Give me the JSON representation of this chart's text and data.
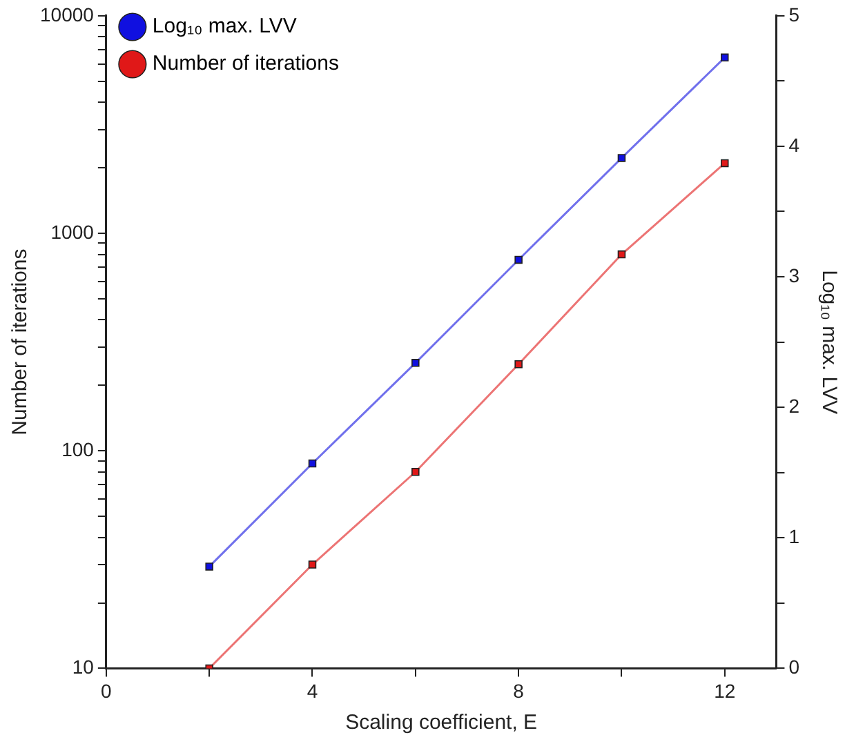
{
  "chart_data": {
    "type": "line",
    "xlabel": "Scaling coefficient, E",
    "ylabel": "Number of iterations",
    "y2label": "Log₁₀ max. LVV",
    "x": [
      2,
      4,
      6,
      8,
      10,
      12
    ],
    "series": [
      {
        "name": "Log₁₀ max. LVV",
        "color": "#1010e0",
        "axis": "y2",
        "values": [
          0.78,
          1.57,
          2.34,
          3.13,
          3.91,
          4.68
        ]
      },
      {
        "name": "Number of iterations",
        "color": "#e01818",
        "values": [
          10,
          30,
          80,
          250,
          800,
          2100
        ]
      }
    ],
    "xlim": [
      0,
      13
    ],
    "xticks": [
      0,
      {
        "value": 2,
        "label": null
      },
      4,
      {
        "value": 6,
        "label": null
      },
      8,
      {
        "value": 10,
        "label": null
      },
      12
    ],
    "ylim": [
      10,
      10000
    ],
    "yticks": [
      10,
      {
        "value": 20,
        "label": null
      },
      {
        "value": 30,
        "label": null
      },
      {
        "value": 40,
        "label": null
      },
      {
        "value": 50,
        "label": null
      },
      {
        "value": 60,
        "label": null
      },
      {
        "value": 70,
        "label": null
      },
      {
        "value": 80,
        "label": null
      },
      {
        "value": 90,
        "label": null
      },
      100,
      {
        "value": 200,
        "label": null
      },
      {
        "value": 300,
        "label": null
      },
      {
        "value": 400,
        "label": null
      },
      {
        "value": 500,
        "label": null
      },
      {
        "value": 600,
        "label": null
      },
      {
        "value": 700,
        "label": null
      },
      {
        "value": 800,
        "label": null
      },
      {
        "value": 900,
        "label": null
      },
      1000,
      {
        "value": 2000,
        "label": null
      },
      {
        "value": 3000,
        "label": null
      },
      {
        "value": 4000,
        "label": null
      },
      {
        "value": 5000,
        "label": null
      },
      {
        "value": 6000,
        "label": null
      },
      {
        "value": 7000,
        "label": null
      },
      {
        "value": 8000,
        "label": null
      },
      {
        "value": 9000,
        "label": null
      },
      10000
    ],
    "y2lim": [
      0,
      5
    ],
    "y2ticks": [
      0,
      {
        "value": 0.5,
        "label": null
      },
      1,
      {
        "value": 1.5,
        "label": null
      },
      2,
      {
        "value": 2.5,
        "label": null
      },
      3,
      {
        "value": 3.5,
        "label": null
      },
      4,
      {
        "value": 4.5,
        "label": null
      },
      5
    ],
    "log": "y",
    "grid": false,
    "legend": "top left",
    "marker": "square",
    "line_style": "solid"
  }
}
